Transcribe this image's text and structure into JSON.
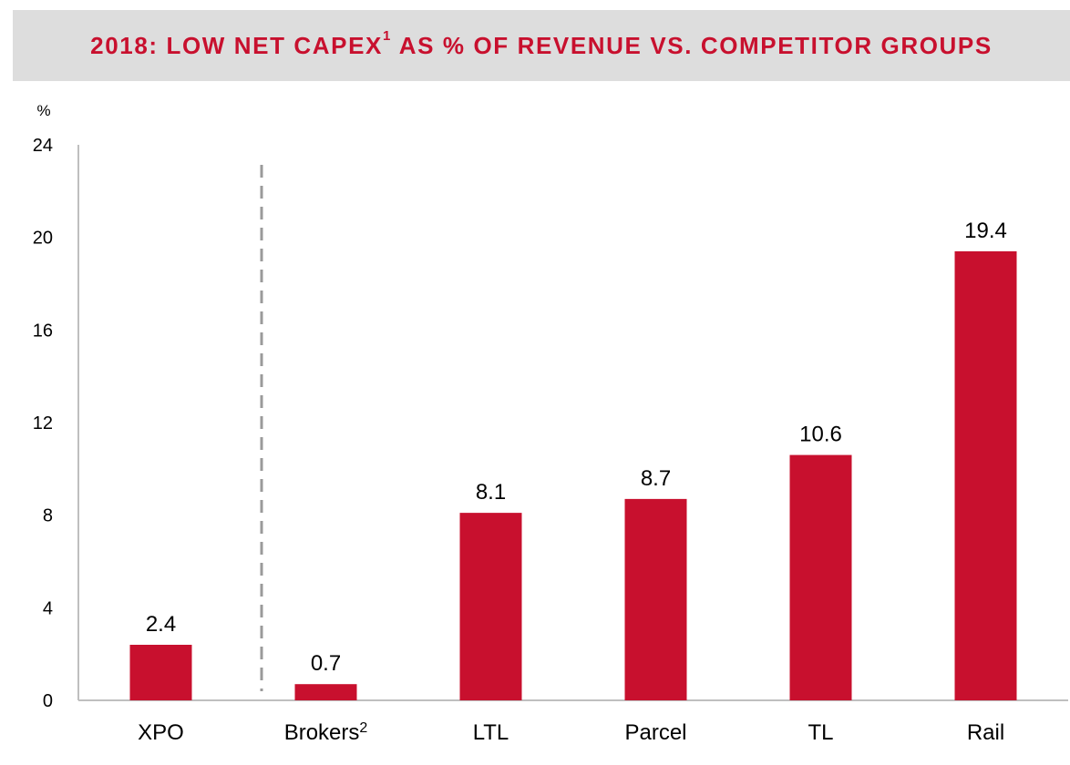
{
  "header": {
    "title_main": "2018: LOW NET CAPEX",
    "title_sup": "1",
    "title_rest": " AS % OF REVENUE VS. COMPETITOR GROUPS"
  },
  "chart_data": {
    "type": "bar",
    "title": "2018: LOW NET CAPEX¹ AS % OF REVENUE VS. COMPETITOR GROUPS",
    "ylabel": "%",
    "ylim": [
      0,
      24
    ],
    "yticks": [
      0,
      4,
      8,
      12,
      16,
      20,
      24
    ],
    "categories": [
      {
        "label": "XPO",
        "sup": ""
      },
      {
        "label": "Brokers",
        "sup": "2"
      },
      {
        "label": "LTL",
        "sup": ""
      },
      {
        "label": "Parcel",
        "sup": ""
      },
      {
        "label": "TL",
        "sup": ""
      },
      {
        "label": "Rail",
        "sup": ""
      }
    ],
    "values": [
      2.4,
      0.7,
      8.1,
      8.7,
      10.6,
      19.4
    ],
    "value_labels": [
      "2.4",
      "0.7",
      "8.1",
      "8.7",
      "10.6",
      "19.4"
    ],
    "bar_color": "#c8102e",
    "separator": "dashed line between XPO and Brokers",
    "grid": false
  }
}
